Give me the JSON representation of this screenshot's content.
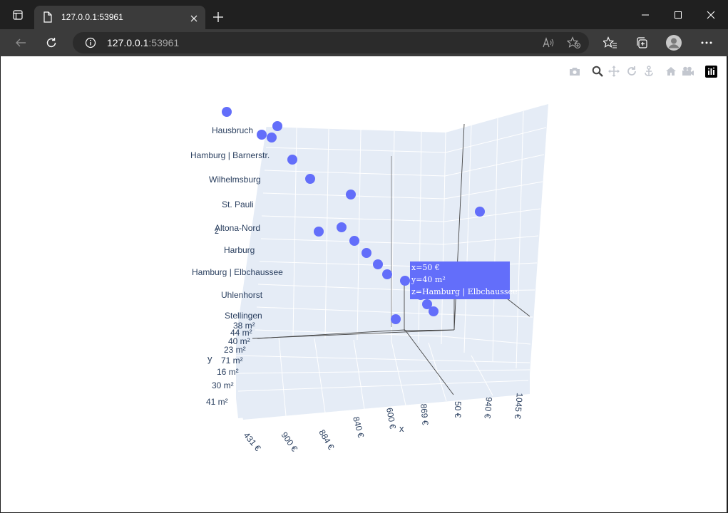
{
  "browser": {
    "tab_title": "127.0.0.1:53961",
    "url_host": "127.0.0.1",
    "url_port": ":53961",
    "icons": [
      "tab-actions-icon",
      "page-icon",
      "close-icon",
      "plus-icon",
      "minimize-icon",
      "maximize-icon",
      "close-window-icon",
      "back-icon",
      "refresh-icon",
      "info-icon",
      "read-aloud-icon",
      "add-favorite-icon",
      "favorites-icon",
      "collections-icon",
      "profile-icon",
      "more-icon"
    ]
  },
  "modebar": {
    "icons": [
      "camera-icon",
      "zoom-icon",
      "pan-icon",
      "orbit-rotation-icon",
      "turntable-rotation-icon",
      "reset-camera-icon",
      "camera-last-save-icon",
      "plotly-logo-icon"
    ]
  },
  "chart_data": {
    "type": "scatter3d",
    "marker_color": "#636efa",
    "x_axis": {
      "title": "x",
      "tick_labels": [
        "431 €",
        "900 €",
        "884 €",
        "840 €",
        "600 €",
        "869 €",
        "50 €",
        "940 €",
        "1045 €"
      ]
    },
    "y_axis": {
      "title": "y",
      "tick_labels": [
        "38 m²",
        "44 m²",
        "40 m²",
        "23 m²",
        "71 m²",
        "16 m²",
        "30 m²",
        "41 m²"
      ]
    },
    "z_axis": {
      "title": "z",
      "tick_labels": [
        "Hausbruch",
        "Hamburg | Barnerstr.",
        "Wilhelmsburg",
        "St. Pauli",
        "Altona-Nord",
        "Harburg",
        "Hamburg | Elbchaussee",
        "Uhlenhorst",
        "Stellingen"
      ]
    },
    "hover": {
      "x": "x=50 €",
      "y": "y=40 m²",
      "z": "z=Hamburg | Elbchaussee"
    }
  }
}
